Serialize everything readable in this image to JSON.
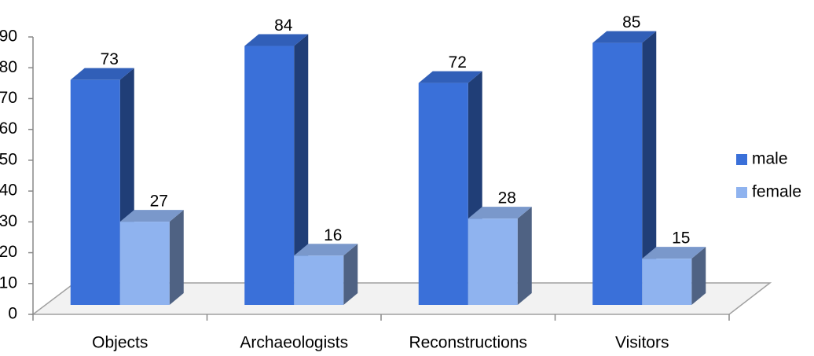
{
  "chart_data": {
    "type": "bar",
    "categories": [
      "Objects",
      "Archaeologists",
      "Reconstructions",
      "Visitors"
    ],
    "series": [
      {
        "name": "male",
        "color": "#3a70d9",
        "values": [
          73,
          84,
          72,
          85
        ]
      },
      {
        "name": "female",
        "color": "#8fb3ef",
        "values": [
          27,
          16,
          28,
          15
        ]
      }
    ],
    "ylim": [
      0,
      90
    ],
    "yticks": [
      0,
      10,
      20,
      30,
      40,
      50,
      60,
      70,
      80,
      90
    ],
    "legend": "right",
    "grid": false
  }
}
